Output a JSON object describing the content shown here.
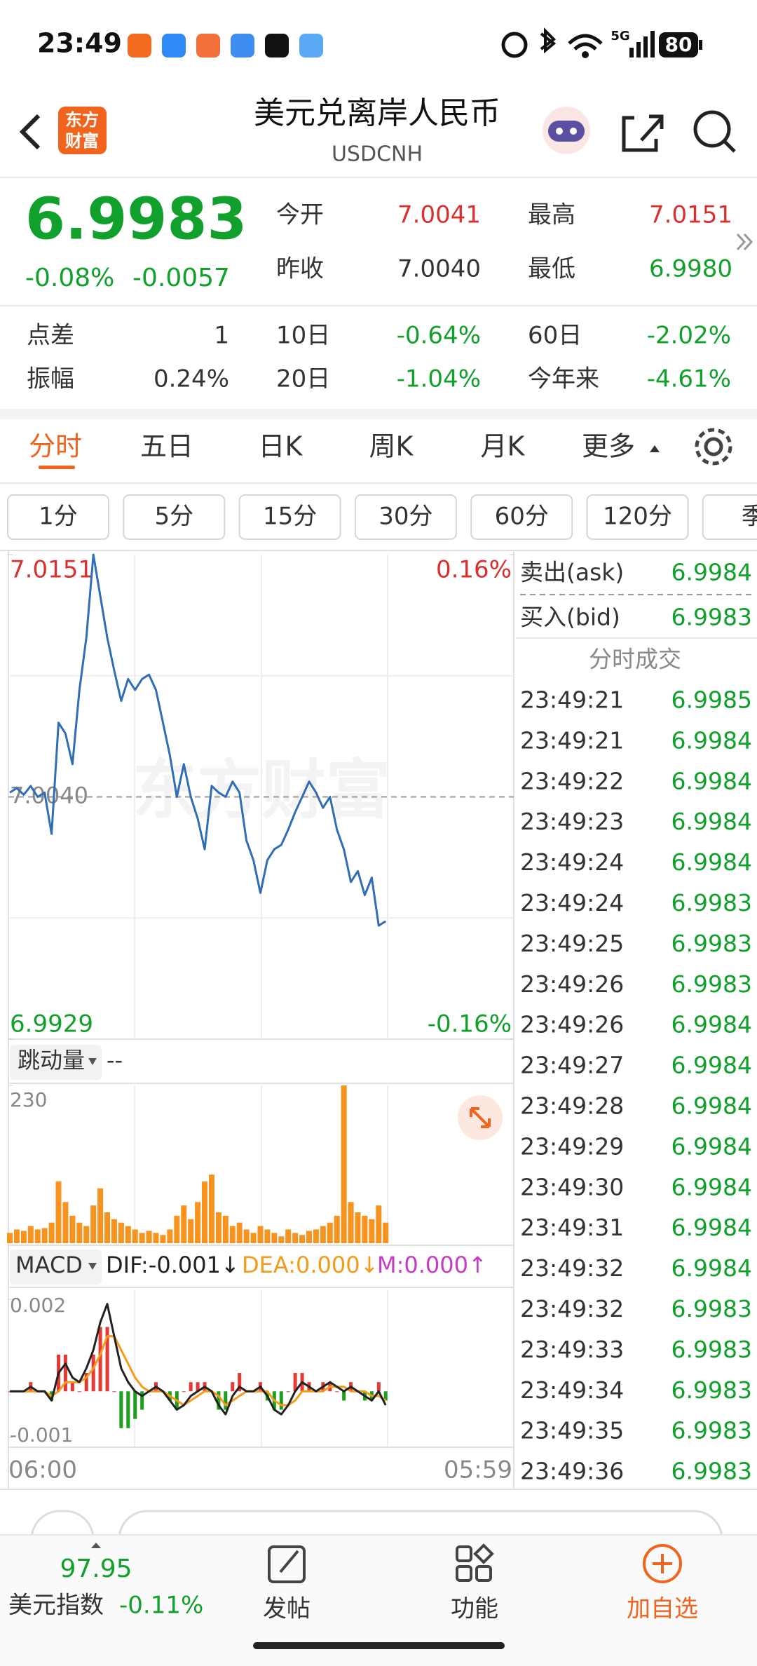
{
  "status_bar": {
    "time": "23:49",
    "network": "5G",
    "battery": "80"
  },
  "header": {
    "logo_lines": [
      "东方",
      "财富"
    ],
    "title": "美元兑离岸人民币",
    "subtitle": "USDCNH"
  },
  "quote": {
    "price": "6.9983",
    "change_pct": "-0.08%",
    "change": "-0.0057",
    "fields": [
      {
        "label": "今开",
        "value": "7.0041"
      },
      {
        "label": "最高",
        "value": "7.0151"
      },
      {
        "label": "昨收",
        "value": "7.0040"
      },
      {
        "label": "最低",
        "value": "6.9980"
      }
    ]
  },
  "stats": [
    {
      "label": "点差",
      "value": "1"
    },
    {
      "label": "10日",
      "value": "-0.64%"
    },
    {
      "label": "60日",
      "value": "-2.02%"
    },
    {
      "label": "振幅",
      "value": "0.24%"
    },
    {
      "label": "20日",
      "value": "-1.04%"
    },
    {
      "label": "今年来",
      "value": "-4.61%"
    }
  ],
  "tabs": [
    "分时",
    "五日",
    "日K",
    "周K",
    "月K",
    "更多"
  ],
  "intervals": [
    "1分",
    "5分",
    "15分",
    "30分",
    "60分",
    "120分",
    "季"
  ],
  "watermark": "东方财富",
  "chart_data": [
    {
      "type": "line",
      "color": "#2f6db5",
      "grid": true,
      "values": [
        7.0042,
        7.0044,
        7.0041,
        7.0045,
        7.004,
        7.0042,
        7.0023,
        7.0074,
        7.0069,
        7.0055,
        7.0089,
        7.0113,
        7.0151,
        7.0132,
        7.0113,
        7.0098,
        7.0084,
        7.0094,
        7.0089,
        7.0094,
        7.0096,
        7.0089,
        7.0074,
        7.0059,
        7.004,
        7.0055,
        7.004,
        7.003,
        7.0016,
        7.0045,
        7.0042,
        7.004,
        7.0047,
        7.0042,
        7.002,
        7.0011,
        6.9996,
        7.0011,
        7.0016,
        7.0018,
        7.0025,
        7.0033,
        7.004,
        7.0047,
        7.0042,
        7.0035,
        7.004,
        7.0025,
        7.0016,
        7.0001,
        7.0006,
        6.9995,
        7.0003,
        6.9981,
        6.9983
      ],
      "ylim": [
        6.9929,
        7.0151
      ],
      "yticks": [
        7.0151,
        6.9929
      ],
      "y2lim": [
        -0.16,
        0.16
      ],
      "y2ticks": [
        {
          "value": 0.16,
          "label": "0.16%"
        },
        {
          "value": -0.16,
          "label": "-0.16%"
        }
      ],
      "reference": {
        "value": 7.004,
        "label": "7.0040"
      },
      "time_labels": [
        "06:00",
        "05:59"
      ]
    },
    {
      "type": "bar",
      "title": "跳动量",
      "subtitle": "--",
      "color": "#f7931e",
      "values": [
        15,
        20,
        18,
        25,
        20,
        22,
        30,
        90,
        60,
        40,
        30,
        25,
        55,
        80,
        45,
        35,
        30,
        25,
        20,
        15,
        18,
        15,
        12,
        20,
        40,
        55,
        35,
        60,
        90,
        100,
        45,
        40,
        25,
        30,
        20,
        15,
        25,
        20,
        15,
        10,
        20,
        15,
        12,
        18,
        20,
        25,
        30,
        40,
        230,
        60,
        45,
        40,
        35,
        55,
        30
      ],
      "ylim": [
        0,
        230
      ],
      "yticks": [
        230
      ]
    },
    {
      "type": "macd",
      "title": "MACD",
      "indicators": [
        {
          "label": "DIF:-0.001↓",
          "color": "#222222"
        },
        {
          "label": "DEA:0.000↓",
          "color": "#f29b1d"
        },
        {
          "label": "M:0.000↑",
          "color": "#c43cc4"
        }
      ],
      "dif": [
        0,
        0,
        0,
        0.0001,
        0,
        0,
        -0.0002,
        0.0004,
        0.0006,
        0.0003,
        0.0002,
        0.0005,
        0.0009,
        0.0015,
        0.0019,
        0.0012,
        0.0005,
        0.0002,
        0,
        -0.0001,
        0,
        0.0001,
        0,
        -0.0002,
        -0.0004,
        -0.0003,
        -0.0001,
        0,
        0.0001,
        0,
        -0.0003,
        -0.0005,
        -0.0001,
        0.0001,
        0,
        0,
        0.0001,
        -0.0001,
        -0.0004,
        -0.0005,
        -0.0003,
        0,
        0.0002,
        0.0001,
        0,
        0.0001,
        0.0002,
        0.0001,
        0,
        0.0001,
        0,
        -0.0001,
        -0.0002,
        0,
        -0.0003
      ],
      "dea": [
        0,
        0,
        0,
        0,
        0,
        0,
        -0.0001,
        0,
        0.0002,
        0.0002,
        0.0002,
        0.0003,
        0.0005,
        0.0008,
        0.0012,
        0.0012,
        0.0009,
        0.0006,
        0.0003,
        0.0001,
        0,
        0,
        0,
        -0.0001,
        -0.0002,
        -0.0003,
        -0.0002,
        -0.0001,
        0,
        0,
        -0.0001,
        -0.0003,
        -0.0002,
        -0.0001,
        0,
        0,
        0,
        0,
        -0.0002,
        -0.0003,
        -0.0003,
        -0.0002,
        0,
        0,
        0,
        0,
        0.0001,
        0.0001,
        0.0001,
        0,
        0,
        0,
        -0.0001,
        -0.0001,
        -0.0002
      ],
      "histogram": [
        0,
        0,
        0,
        0.0002,
        0,
        0,
        -0.0002,
        0.0008,
        0.0008,
        0.0002,
        0,
        0.0004,
        0.0008,
        0.0014,
        0.0014,
        0,
        -0.0008,
        -0.0008,
        -0.0006,
        -0.0004,
        0,
        0.0002,
        0,
        -0.0002,
        -0.0004,
        0,
        0.0002,
        0.0002,
        0.0002,
        0,
        -0.0004,
        -0.0004,
        0.0002,
        0.0004,
        0,
        0,
        0.0002,
        -0.0002,
        -0.0004,
        -0.0004,
        0,
        0.0004,
        0.0004,
        0.0002,
        0,
        0.0002,
        0.0002,
        0,
        -0.0002,
        0.0002,
        0,
        -0.0002,
        -0.0002,
        0.0002,
        -0.0002
      ],
      "up_color": "#e53935",
      "down_color": "#1e9e1e",
      "dif_color": "#222222",
      "dea_color": "#f29b1d",
      "ylim": [
        -0.0012,
        0.0022
      ],
      "yticks": [
        0.002,
        -0.001
      ]
    }
  ],
  "order_book": {
    "ask_label": "卖出(ask)",
    "ask": "6.9984",
    "bid_label": "买入(bid)",
    "bid": "6.9983",
    "trades_title": "分时成交",
    "trades": [
      [
        "23:49:21",
        "6.9985"
      ],
      [
        "23:49:21",
        "6.9984"
      ],
      [
        "23:49:22",
        "6.9984"
      ],
      [
        "23:49:23",
        "6.9984"
      ],
      [
        "23:49:24",
        "6.9984"
      ],
      [
        "23:49:24",
        "6.9983"
      ],
      [
        "23:49:25",
        "6.9983"
      ],
      [
        "23:49:26",
        "6.9983"
      ],
      [
        "23:49:26",
        "6.9984"
      ],
      [
        "23:49:27",
        "6.9984"
      ],
      [
        "23:49:28",
        "6.9984"
      ],
      [
        "23:49:29",
        "6.9984"
      ],
      [
        "23:49:30",
        "6.9984"
      ],
      [
        "23:49:31",
        "6.9984"
      ],
      [
        "23:49:32",
        "6.9984"
      ],
      [
        "23:49:32",
        "6.9983"
      ],
      [
        "23:49:33",
        "6.9983"
      ],
      [
        "23:49:34",
        "6.9983"
      ],
      [
        "23:49:35",
        "6.9983"
      ],
      [
        "23:49:36",
        "6.9983"
      ]
    ]
  },
  "footer": {
    "index_value": "97.95",
    "index_name": "美元指数",
    "index_change": "-0.11%",
    "buttons": [
      "发帖",
      "功能",
      "加自选"
    ]
  }
}
